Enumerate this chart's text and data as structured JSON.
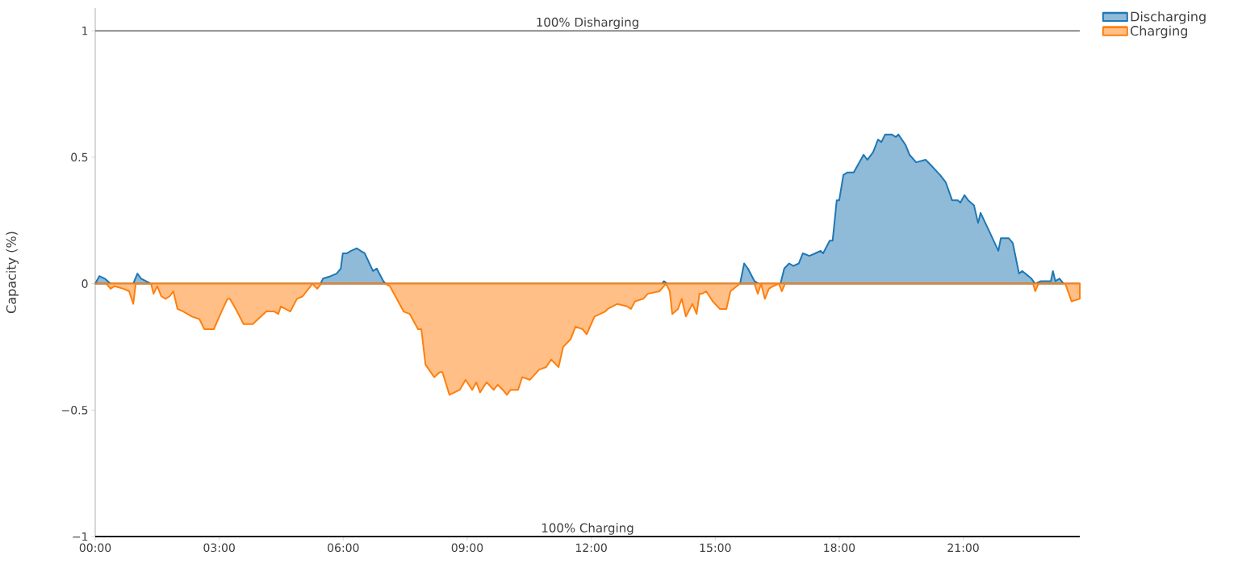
{
  "chart_data": {
    "type": "area",
    "ylabel": "Capacity (%)",
    "legend": "top right",
    "marker": "none",
    "line_style": "solid",
    "xlim": [
      0,
      23.82
    ],
    "ylim": [
      -1,
      1.09
    ],
    "xticks": [
      {
        "value": 0,
        "label": "00:00"
      },
      {
        "value": 3,
        "label": "03:00"
      },
      {
        "value": 6,
        "label": "06:00"
      },
      {
        "value": 9,
        "label": "09:00"
      },
      {
        "value": 12,
        "label": "12:00"
      },
      {
        "value": 15,
        "label": "15:00"
      },
      {
        "value": 18,
        "label": "18:00"
      },
      {
        "value": 21,
        "label": "21:00"
      }
    ],
    "yticks": [
      {
        "value": -1,
        "label": "−1"
      },
      {
        "value": -0.5,
        "label": "−0.5"
      },
      0,
      0.5,
      1
    ],
    "ref_lines": [
      {
        "axis": "y",
        "value": 1,
        "label": "100% Disharging",
        "color": "#666666"
      },
      {
        "axis": "y",
        "value": -1,
        "label": "100% Charging",
        "color": "#000000"
      }
    ],
    "series": [
      {
        "name": "Discharging",
        "color": "#1f77b4",
        "x": [
          0,
          0.1,
          0.23,
          0.37,
          0.92,
          1.02,
          1.11,
          1.35,
          5.45,
          5.51,
          5.7,
          5.84,
          5.94,
          5.99,
          6.09,
          6.19,
          6.33,
          6.42,
          6.52,
          6.72,
          6.81,
          6.97,
          7.03,
          13.71,
          13.76,
          13.84,
          15.6,
          15.7,
          15.79,
          15.95,
          16.05,
          16.58,
          16.67,
          16.79,
          16.89,
          17.02,
          17.12,
          17.28,
          17.42,
          17.55,
          17.61,
          17.77,
          17.84,
          17.94,
          18.0,
          18.1,
          18.2,
          18.35,
          18.59,
          18.68,
          18.82,
          18.94,
          19.02,
          19.11,
          19.27,
          19.37,
          19.43,
          19.6,
          19.7,
          19.86,
          20.09,
          20.21,
          20.44,
          20.58,
          20.73,
          20.87,
          20.93,
          21.03,
          21.12,
          21.26,
          21.36,
          21.42,
          21.65,
          21.85,
          21.91,
          22.1,
          22.2,
          22.35,
          22.43,
          22.65,
          22.74,
          22.88,
          23.02,
          23.12,
          23.17,
          23.23,
          23.33,
          23.43,
          23.82
        ],
        "values": [
          0,
          0.03,
          0.02,
          0,
          0,
          0.04,
          0.02,
          0,
          0,
          0.02,
          0.03,
          0.04,
          0.06,
          0.12,
          0.12,
          0.13,
          0.14,
          0.13,
          0.12,
          0.05,
          0.06,
          0.01,
          0,
          0,
          0.01,
          0,
          0,
          0.08,
          0.06,
          0.01,
          0,
          0,
          0.06,
          0.08,
          0.07,
          0.08,
          0.12,
          0.11,
          0.12,
          0.13,
          0.12,
          0.17,
          0.17,
          0.33,
          0.33,
          0.43,
          0.44,
          0.44,
          0.51,
          0.49,
          0.52,
          0.57,
          0.56,
          0.59,
          0.59,
          0.58,
          0.59,
          0.55,
          0.51,
          0.48,
          0.49,
          0.47,
          0.43,
          0.4,
          0.33,
          0.33,
          0.32,
          0.35,
          0.33,
          0.31,
          0.24,
          0.28,
          0.2,
          0.13,
          0.18,
          0.18,
          0.16,
          0.04,
          0.05,
          0.02,
          0,
          0.01,
          0.01,
          0.01,
          0.05,
          0.01,
          0.02,
          0,
          0
        ]
      },
      {
        "name": "Charging",
        "color": "#ff7f0e",
        "x": [
          0,
          0.27,
          0.37,
          0.47,
          0.68,
          0.82,
          0.92,
          0.98,
          1.35,
          1.41,
          1.5,
          1.6,
          1.7,
          1.8,
          1.89,
          1.99,
          2.13,
          2.34,
          2.52,
          2.64,
          2.87,
          3.03,
          3.2,
          3.26,
          3.4,
          3.59,
          3.81,
          4.14,
          4.33,
          4.43,
          4.49,
          4.72,
          4.88,
          5.02,
          5.21,
          5.25,
          5.37,
          5.47,
          7.01,
          7.13,
          7.46,
          7.61,
          7.81,
          7.89,
          7.99,
          8.2,
          8.34,
          8.4,
          8.57,
          8.69,
          8.82,
          8.96,
          9.12,
          9.22,
          9.31,
          9.47,
          9.64,
          9.74,
          9.86,
          9.96,
          10.05,
          10.23,
          10.33,
          10.52,
          10.74,
          10.91,
          11.03,
          11.21,
          11.32,
          11.5,
          11.62,
          11.79,
          11.89,
          12.08,
          12.34,
          12.4,
          12.63,
          12.87,
          12.96,
          13.06,
          13.26,
          13.37,
          13.65,
          13.81,
          13.9,
          13.96,
          14.1,
          14.19,
          14.29,
          14.45,
          14.55,
          14.62,
          14.68,
          14.78,
          14.94,
          15.11,
          15.27,
          15.37,
          15.6,
          15.95,
          16.03,
          16.11,
          16.2,
          16.3,
          16.4,
          16.54,
          16.61,
          16.69,
          22.69,
          22.74,
          22.82,
          23.47,
          23.62,
          23.82
        ],
        "values": [
          0,
          0,
          -0.02,
          -0.01,
          -0.02,
          -0.03,
          -0.08,
          0,
          0,
          -0.04,
          -0.01,
          -0.05,
          -0.06,
          -0.05,
          -0.03,
          -0.1,
          -0.11,
          -0.13,
          -0.14,
          -0.18,
          -0.18,
          -0.12,
          -0.06,
          -0.06,
          -0.1,
          -0.16,
          -0.16,
          -0.11,
          -0.11,
          -0.12,
          -0.09,
          -0.11,
          -0.06,
          -0.05,
          -0.01,
          0,
          -0.02,
          0,
          0,
          -0.01,
          -0.11,
          -0.12,
          -0.18,
          -0.18,
          -0.32,
          -0.37,
          -0.35,
          -0.35,
          -0.44,
          -0.43,
          -0.42,
          -0.38,
          -0.42,
          -0.39,
          -0.43,
          -0.39,
          -0.42,
          -0.4,
          -0.42,
          -0.44,
          -0.42,
          -0.42,
          -0.37,
          -0.38,
          -0.34,
          -0.33,
          -0.3,
          -0.33,
          -0.25,
          -0.22,
          -0.17,
          -0.18,
          -0.2,
          -0.13,
          -0.11,
          -0.1,
          -0.08,
          -0.09,
          -0.1,
          -0.07,
          -0.06,
          -0.04,
          -0.03,
          0,
          -0.03,
          -0.12,
          -0.1,
          -0.06,
          -0.13,
          -0.08,
          -0.12,
          -0.04,
          -0.04,
          -0.03,
          -0.07,
          -0.1,
          -0.1,
          -0.03,
          0,
          0,
          -0.04,
          0,
          -0.06,
          -0.02,
          -0.01,
          0,
          -0.03,
          0,
          0,
          -0.03,
          0,
          0,
          -0.07,
          -0.06
        ]
      }
    ]
  }
}
